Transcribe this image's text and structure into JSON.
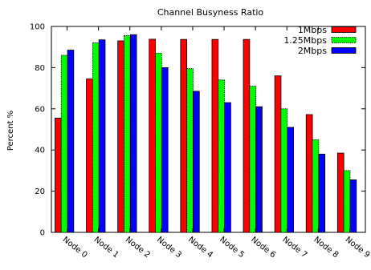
{
  "chart_data": {
    "type": "bar",
    "title": "Channel Busyness Ratio",
    "xlabel": "",
    "ylabel": "Percent %",
    "ylim": [
      0,
      100
    ],
    "yticks": [
      0,
      20,
      40,
      60,
      80,
      100
    ],
    "categories": [
      "Node 0",
      "Node 1",
      "Node 2",
      "Node 3",
      "Node 4",
      "Node 5",
      "Node 6",
      "Node 7",
      "Node 8",
      "Node 9"
    ],
    "series": [
      {
        "name": "1Mbps",
        "color": "#ff0000",
        "values": [
          55.5,
          74.5,
          93,
          93.8,
          93.7,
          93.7,
          93.7,
          76,
          57.2,
          38.5
        ]
      },
      {
        "name": "1.25Mbps",
        "color": "#00ff00",
        "values": [
          86,
          92,
          95.5,
          87,
          79.5,
          74,
          71,
          60,
          45,
          30
        ]
      },
      {
        "name": "2Mbps",
        "color": "#0000ff",
        "values": [
          88.5,
          93.5,
          96,
          80,
          68.5,
          63,
          61,
          51,
          38,
          25.5
        ]
      }
    ],
    "legend_position": "top-right",
    "grid": false
  }
}
